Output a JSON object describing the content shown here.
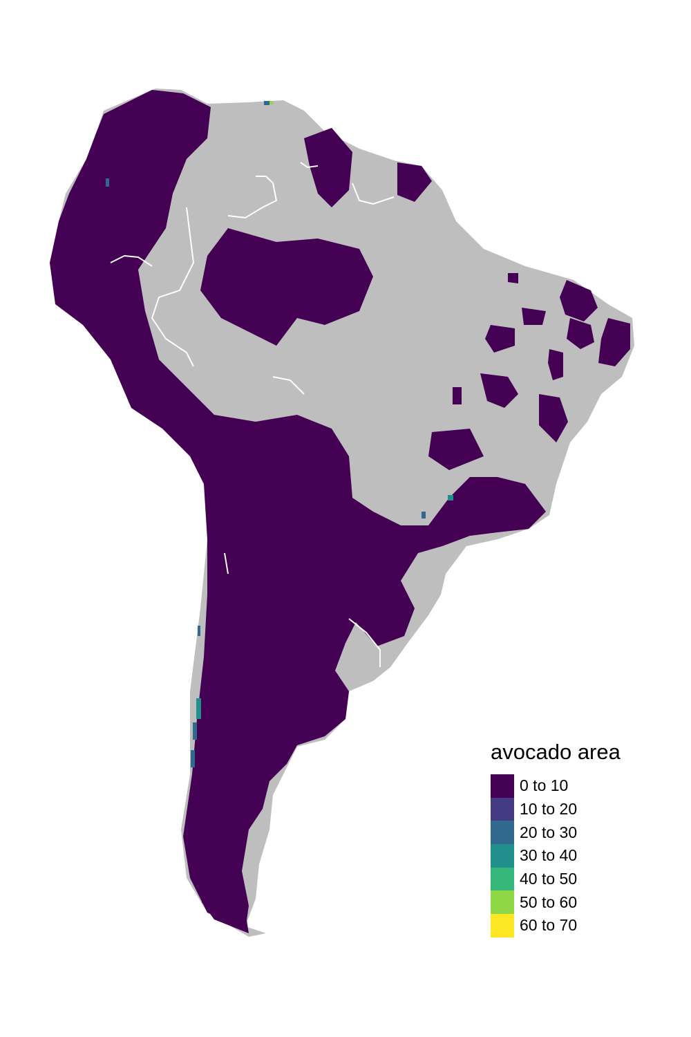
{
  "legend": {
    "title": "avocado area",
    "items": [
      {
        "label": "0 to 10",
        "color": "#440154"
      },
      {
        "label": "10 to 20",
        "color": "#443A83"
      },
      {
        "label": "20 to 30",
        "color": "#31688E"
      },
      {
        "label": "30 to 40",
        "color": "#21908C"
      },
      {
        "label": "40 to 50",
        "color": "#35B779"
      },
      {
        "label": "50 to 60",
        "color": "#8FD744"
      },
      {
        "label": "60 to 70",
        "color": "#FDE725"
      }
    ]
  },
  "colors": {
    "land": "#BEBEBE",
    "border": "#FFFFFF",
    "low": "#440154"
  }
}
